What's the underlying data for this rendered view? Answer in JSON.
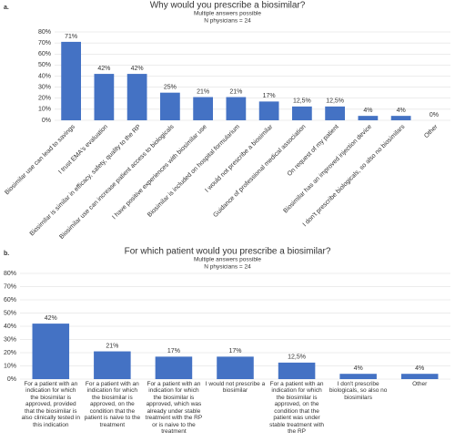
{
  "chart_data": [
    {
      "type": "bar",
      "label": "a.",
      "title": "Why would you prescribe a biosimilar?",
      "subtitle": [
        "Multiple answers possible",
        "N physicians = 24"
      ],
      "categories": [
        "Biosimilar use can lead to savings",
        "I trust EMA's evaluation",
        "Biosimilar is similar in efficacy, safety, quality to the RP",
        "Biosimilar use can increase patient access to biologicals",
        "I have positive experiences with biosimilar use",
        "Biosimilar is included on hospital formularium",
        "I would not prescribe a biosimilar",
        "Guidance of professional medical association",
        "On request of my patient",
        "Biosimilar has an improved injection device",
        "I don't prescribe biologicals, so also no biosimilars",
        "Other"
      ],
      "values": [
        71,
        42,
        42,
        25,
        21,
        21,
        17,
        12.5,
        12.5,
        4,
        4,
        0
      ],
      "value_labels": [
        "71%",
        "42%",
        "42%",
        "25%",
        "21%",
        "21%",
        "17%",
        "12,5%",
        "12,5%",
        "4%",
        "4%",
        "0%"
      ],
      "color": "#4472c4",
      "ylim": [
        0,
        80
      ],
      "yticks": [
        {
          "value": 0,
          "label": "0%"
        },
        {
          "value": 10,
          "label": "10%"
        },
        {
          "value": 20,
          "label": "20%"
        },
        {
          "value": 30,
          "label": "30%"
        },
        {
          "value": 40,
          "label": "40%"
        },
        {
          "value": 50,
          "label": "50%"
        },
        {
          "value": 60,
          "label": "60%"
        },
        {
          "value": 70,
          "label": "70%"
        },
        {
          "value": 80,
          "label": "80%"
        }
      ],
      "grid": true
    },
    {
      "type": "bar",
      "label": "b.",
      "title": "For which patient would you prescribe a biosimilar?",
      "subtitle": [
        "Multiple answers possible",
        "N physicians = 24"
      ],
      "categories": [
        "For a patient with an indication for which the biosimilar is approved, provided that the biosimilar is also clinically tested in this indication",
        "For a patient with an indication for which the biosimilar is approved, on the condition that the patient is naive to the treatment",
        "For a patient with an indication for which the biosimilar is approved, which was already under stable treatment with the RP or is naive to the treatment",
        "I would not prescribe a biosimilar",
        "For a patient with an indication for which the biosimilar is approved, on the condition that the patient was under stable treatment with the RP",
        "I don't prescribe biologicals, so also no biosimilars",
        "Other"
      ],
      "values": [
        42,
        21,
        17,
        17,
        12.5,
        4,
        4
      ],
      "value_labels": [
        "42%",
        "21%",
        "17%",
        "17%",
        "12,5%",
        "4%",
        "4%"
      ],
      "color": "#4472c4",
      "ylim": [
        0,
        80
      ],
      "yticks": [
        {
          "value": 0,
          "label": "0%"
        },
        {
          "value": 10,
          "label": "10%"
        },
        {
          "value": 20,
          "label": "20%"
        },
        {
          "value": 30,
          "label": "30%"
        },
        {
          "value": 40,
          "label": "40%"
        },
        {
          "value": 50,
          "label": "50%"
        },
        {
          "value": 60,
          "label": "60%"
        },
        {
          "value": 70,
          "label": "70%"
        },
        {
          "value": 80,
          "label": "80%"
        }
      ],
      "grid": true
    }
  ]
}
